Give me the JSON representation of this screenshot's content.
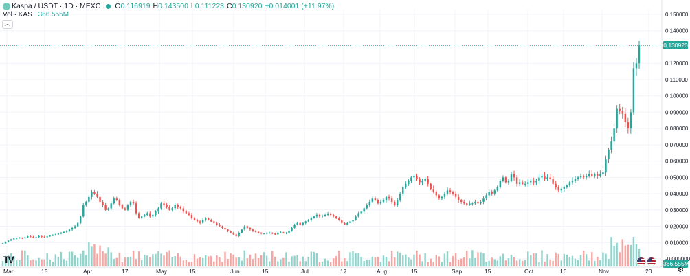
{
  "header": {
    "symbol": "Kaspa / USDT · 1D · MEXC",
    "open_label": "O",
    "open": "0.116919",
    "high_label": "H",
    "high": "0.143500",
    "low_label": "L",
    "low": "0.111223",
    "close_label": "C",
    "close": "0.130920",
    "change": "+0.014001 (+11.97%)"
  },
  "volume": {
    "label": "Vol · KAS",
    "value": "366.555M"
  },
  "collapse_icon": "chevron-up-icon",
  "price_label": "0.130920",
  "volume_label": "366.555M",
  "colors": {
    "up": "#26a69a",
    "down": "#ef5350",
    "vol_up": "#8fd3cb",
    "vol_down": "#f5a6a3"
  },
  "chart_data": {
    "type": "candlestick",
    "y_ticks": [
      "0.150000",
      "0.140000",
      "0.120000",
      "0.110000",
      "0.100000",
      "0.090000",
      "0.080000",
      "0.070000",
      "0.060000",
      "0.050000",
      "0.040000",
      "0.030000",
      "0.020000",
      "0.010000",
      "-0.000000"
    ],
    "x_ticks": [
      "Mar",
      "15",
      "Apr",
      "17",
      "May",
      "15",
      "Jun",
      "15",
      "Jul",
      "17",
      "Aug",
      "15",
      "Sep",
      "15",
      "Oct",
      "16",
      "Nov",
      "20"
    ],
    "ylim": [
      -0.001,
      0.152
    ],
    "grid": true,
    "closes": [
      0.0095,
      0.0105,
      0.0112,
      0.012,
      0.0125,
      0.0128,
      0.013,
      0.0127,
      0.0132,
      0.0138,
      0.0135,
      0.013,
      0.0133,
      0.014,
      0.0136,
      0.0134,
      0.0138,
      0.0142,
      0.0147,
      0.015,
      0.0155,
      0.016,
      0.0165,
      0.0172,
      0.018,
      0.019,
      0.02,
      0.022,
      0.026,
      0.033,
      0.035,
      0.038,
      0.041,
      0.04,
      0.038,
      0.035,
      0.033,
      0.03,
      0.031,
      0.034,
      0.037,
      0.036,
      0.033,
      0.031,
      0.03,
      0.033,
      0.035,
      0.034,
      0.028,
      0.025,
      0.026,
      0.027,
      0.028,
      0.026,
      0.027,
      0.029,
      0.031,
      0.034,
      0.033,
      0.032,
      0.03,
      0.031,
      0.033,
      0.032,
      0.031,
      0.029,
      0.028,
      0.027,
      0.025,
      0.024,
      0.023,
      0.022,
      0.024,
      0.025,
      0.024,
      0.023,
      0.022,
      0.021,
      0.02,
      0.019,
      0.018,
      0.017,
      0.016,
      0.015,
      0.014,
      0.016,
      0.018,
      0.02,
      0.019,
      0.018,
      0.017,
      0.0165,
      0.016,
      0.0155,
      0.0155,
      0.0158,
      0.016,
      0.0155,
      0.015,
      0.016,
      0.0162,
      0.0158,
      0.016,
      0.017,
      0.019,
      0.021,
      0.022,
      0.021,
      0.022,
      0.023,
      0.024,
      0.025,
      0.026,
      0.027,
      0.026,
      0.0265,
      0.027,
      0.0275,
      0.027,
      0.026,
      0.025,
      0.024,
      0.022,
      0.021,
      0.022,
      0.023,
      0.024,
      0.026,
      0.028,
      0.029,
      0.031,
      0.033,
      0.035,
      0.037,
      0.036,
      0.034,
      0.035,
      0.036,
      0.038,
      0.037,
      0.035,
      0.033,
      0.036,
      0.04,
      0.044,
      0.046,
      0.048,
      0.05,
      0.051,
      0.049,
      0.047,
      0.048,
      0.049,
      0.046,
      0.043,
      0.041,
      0.039,
      0.037,
      0.038,
      0.04,
      0.042,
      0.041,
      0.04,
      0.038,
      0.036,
      0.035,
      0.034,
      0.033,
      0.034,
      0.034,
      0.035,
      0.034,
      0.035,
      0.037,
      0.039,
      0.041,
      0.04,
      0.042,
      0.044,
      0.048,
      0.05,
      0.047,
      0.048,
      0.052,
      0.05,
      0.046,
      0.047,
      0.046,
      0.046,
      0.047,
      0.048,
      0.047,
      0.048,
      0.05,
      0.051,
      0.049,
      0.05,
      0.049,
      0.046,
      0.044,
      0.042,
      0.043,
      0.044,
      0.045,
      0.047,
      0.048,
      0.049,
      0.05,
      0.051,
      0.05,
      0.051,
      0.052,
      0.051,
      0.052,
      0.051,
      0.052,
      0.053,
      0.061,
      0.067,
      0.072,
      0.08,
      0.092,
      0.091,
      0.089,
      0.084,
      0.08,
      0.09,
      0.117,
      0.12,
      0.1309
    ]
  }
}
